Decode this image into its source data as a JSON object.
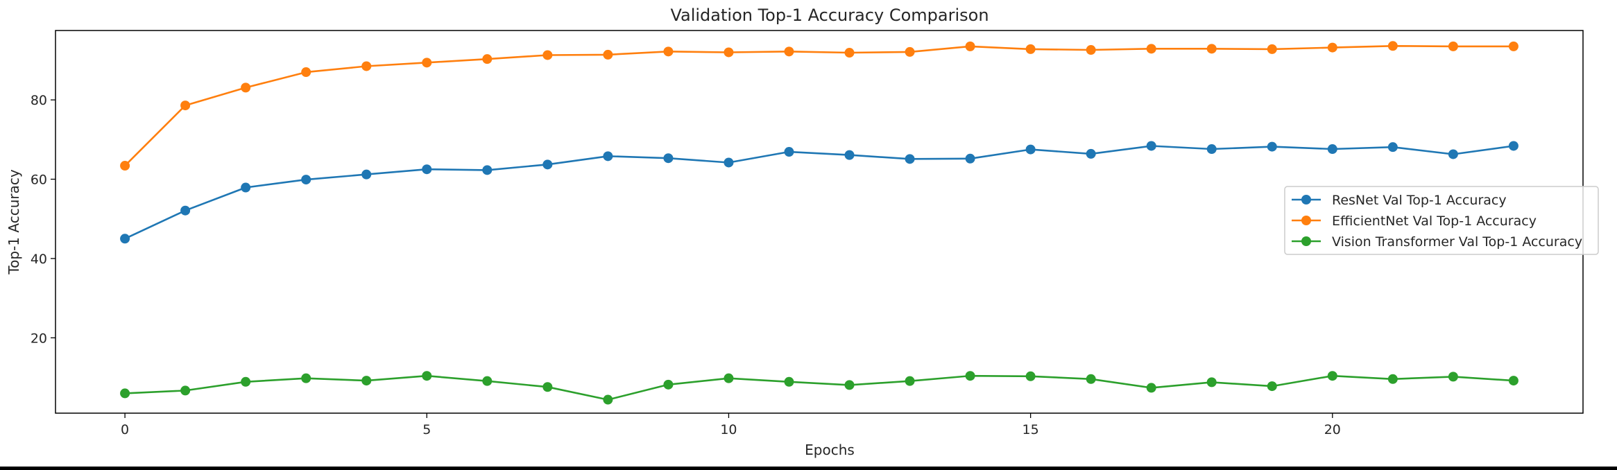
{
  "chart_data": {
    "type": "line",
    "title": "Validation Top-1 Accuracy Comparison",
    "xlabel": "Epochs",
    "ylabel": "Top-1 Accuracy",
    "xlim": [
      -1.15,
      24.15
    ],
    "ylim": [
      1.0,
      97.5
    ],
    "xticks": [
      0,
      5,
      10,
      15,
      20
    ],
    "yticks": [
      20,
      40,
      60,
      80
    ],
    "grid": false,
    "legend_position": "center-right",
    "x": [
      0,
      1,
      2,
      3,
      4,
      5,
      6,
      7,
      8,
      9,
      10,
      11,
      12,
      13,
      14,
      15,
      16,
      17,
      18,
      19,
      20,
      21,
      22,
      23
    ],
    "series": [
      {
        "name": "ResNet Val Top-1 Accuracy",
        "color": "#1f77b4",
        "values": [
          45.0,
          52.1,
          57.9,
          59.9,
          61.2,
          62.5,
          62.3,
          63.7,
          65.8,
          65.3,
          64.2,
          66.9,
          66.1,
          65.1,
          65.2,
          67.5,
          66.4,
          68.4,
          67.6,
          68.2,
          67.6,
          68.1,
          66.3,
          68.4
        ]
      },
      {
        "name": "EfficientNet Val Top-1 Accuracy",
        "color": "#ff7f0e",
        "values": [
          63.4,
          78.6,
          83.1,
          87.0,
          88.5,
          89.4,
          90.3,
          91.3,
          91.4,
          92.2,
          92.0,
          92.2,
          91.9,
          92.1,
          93.5,
          92.8,
          92.6,
          92.9,
          92.9,
          92.8,
          93.2,
          93.6,
          93.5,
          93.5
        ]
      },
      {
        "name": "Vision Transformer Val Top-1 Accuracy",
        "color": "#2ca02c",
        "values": [
          6.0,
          6.7,
          8.9,
          9.8,
          9.2,
          10.4,
          9.1,
          7.6,
          4.4,
          8.2,
          9.8,
          8.9,
          8.1,
          9.1,
          10.4,
          10.3,
          9.6,
          7.4,
          8.8,
          7.8,
          10.4,
          9.6,
          10.2,
          9.2
        ]
      }
    ]
  }
}
